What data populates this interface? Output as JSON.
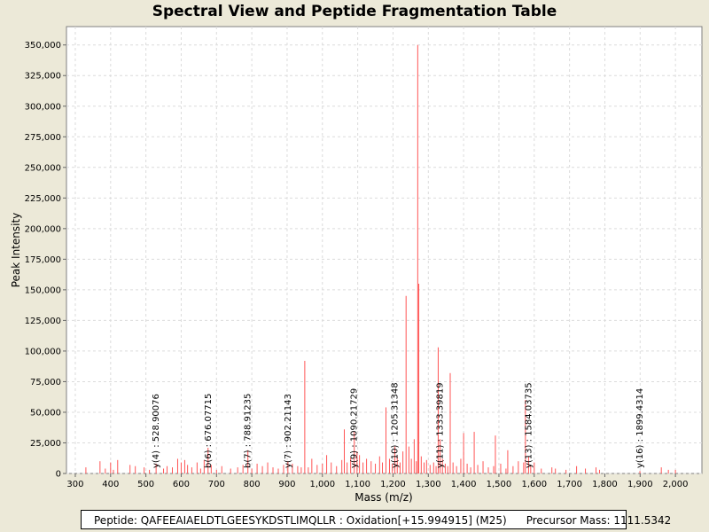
{
  "chart_data": {
    "type": "bar",
    "title": "Spectral View and Peptide Fragmentation Table",
    "xlabel": "Mass (m/z)",
    "ylabel": "Peak Intensity",
    "xlim": [
      275,
      2075
    ],
    "ylim": [
      0,
      365000
    ],
    "grid": true,
    "peak_color": "#ff5555",
    "x_ticks": [
      300,
      400,
      500,
      600,
      700,
      800,
      900,
      1000,
      1100,
      1200,
      1300,
      1400,
      1500,
      1600,
      1700,
      1800,
      1900,
      2000
    ],
    "x_tick_labels": [
      "300",
      "400",
      "500",
      "600",
      "700",
      "800",
      "900",
      "1,000",
      "1,100",
      "1,200",
      "1,300",
      "1,400",
      "1,500",
      "1,600",
      "1,700",
      "1,800",
      "1,900",
      "2,000"
    ],
    "y_ticks": [
      0,
      25000,
      50000,
      75000,
      100000,
      125000,
      150000,
      175000,
      200000,
      225000,
      250000,
      275000,
      300000,
      325000,
      350000
    ],
    "y_tick_labels": [
      "0",
      "25,000",
      "50,000",
      "75,000",
      "100,000",
      "125,000",
      "150,000",
      "175,000",
      "200,000",
      "225,000",
      "250,000",
      "275,000",
      "300,000",
      "325,000",
      "350,000"
    ],
    "peaks": [
      {
        "mz": 330,
        "intensity": 5000
      },
      {
        "mz": 370,
        "intensity": 10000
      },
      {
        "mz": 385,
        "intensity": 4000
      },
      {
        "mz": 400,
        "intensity": 9000
      },
      {
        "mz": 408,
        "intensity": 3000
      },
      {
        "mz": 420,
        "intensity": 11000
      },
      {
        "mz": 455,
        "intensity": 7000
      },
      {
        "mz": 470,
        "intensity": 6000
      },
      {
        "mz": 495,
        "intensity": 5000
      },
      {
        "mz": 510,
        "intensity": 3000
      },
      {
        "mz": 528.9,
        "intensity": 8000
      },
      {
        "mz": 550,
        "intensity": 4000
      },
      {
        "mz": 560,
        "intensity": 6000
      },
      {
        "mz": 575,
        "intensity": 5000
      },
      {
        "mz": 590,
        "intensity": 12000
      },
      {
        "mz": 600,
        "intensity": 9000
      },
      {
        "mz": 610,
        "intensity": 11000
      },
      {
        "mz": 618,
        "intensity": 7000
      },
      {
        "mz": 630,
        "intensity": 5000
      },
      {
        "mz": 645,
        "intensity": 9000
      },
      {
        "mz": 655,
        "intensity": 4000
      },
      {
        "mz": 665,
        "intensity": 11000
      },
      {
        "mz": 676.08,
        "intensity": 21000
      },
      {
        "mz": 685,
        "intensity": 7000
      },
      {
        "mz": 700,
        "intensity": 3000
      },
      {
        "mz": 715,
        "intensity": 6000
      },
      {
        "mz": 740,
        "intensity": 4000
      },
      {
        "mz": 760,
        "intensity": 5000
      },
      {
        "mz": 775,
        "intensity": 7000
      },
      {
        "mz": 788.9,
        "intensity": 19000
      },
      {
        "mz": 800,
        "intensity": 4000
      },
      {
        "mz": 815,
        "intensity": 8000
      },
      {
        "mz": 830,
        "intensity": 6000
      },
      {
        "mz": 845,
        "intensity": 9000
      },
      {
        "mz": 860,
        "intensity": 5000
      },
      {
        "mz": 875,
        "intensity": 4000
      },
      {
        "mz": 890,
        "intensity": 7000
      },
      {
        "mz": 902.2,
        "intensity": 10000
      },
      {
        "mz": 915,
        "intensity": 8000
      },
      {
        "mz": 930,
        "intensity": 6000
      },
      {
        "mz": 940,
        "intensity": 5000
      },
      {
        "mz": 950,
        "intensity": 92000
      },
      {
        "mz": 960,
        "intensity": 5000
      },
      {
        "mz": 970,
        "intensity": 12000
      },
      {
        "mz": 985,
        "intensity": 7000
      },
      {
        "mz": 1000,
        "intensity": 8000
      },
      {
        "mz": 1012,
        "intensity": 15000
      },
      {
        "mz": 1025,
        "intensity": 9000
      },
      {
        "mz": 1040,
        "intensity": 6000
      },
      {
        "mz": 1055,
        "intensity": 11000
      },
      {
        "mz": 1062,
        "intensity": 36000
      },
      {
        "mz": 1070,
        "intensity": 9000
      },
      {
        "mz": 1080,
        "intensity": 13000
      },
      {
        "mz": 1090.2,
        "intensity": 34000
      },
      {
        "mz": 1098,
        "intensity": 18000
      },
      {
        "mz": 1105,
        "intensity": 15000
      },
      {
        "mz": 1115,
        "intensity": 9000
      },
      {
        "mz": 1125,
        "intensity": 12000
      },
      {
        "mz": 1138,
        "intensity": 10000
      },
      {
        "mz": 1150,
        "intensity": 8000
      },
      {
        "mz": 1162,
        "intensity": 14000
      },
      {
        "mz": 1170,
        "intensity": 9000
      },
      {
        "mz": 1180,
        "intensity": 54000
      },
      {
        "mz": 1190,
        "intensity": 12000
      },
      {
        "mz": 1198,
        "intensity": 8000
      },
      {
        "mz": 1205.3,
        "intensity": 22000
      },
      {
        "mz": 1212,
        "intensity": 14000
      },
      {
        "mz": 1220,
        "intensity": 9000
      },
      {
        "mz": 1228,
        "intensity": 18000
      },
      {
        "mz": 1237,
        "intensity": 145000
      },
      {
        "mz": 1245,
        "intensity": 22000
      },
      {
        "mz": 1252,
        "intensity": 12000
      },
      {
        "mz": 1260,
        "intensity": 28000
      },
      {
        "mz": 1266,
        "intensity": 10000
      },
      {
        "mz": 1270,
        "intensity": 350000
      },
      {
        "mz": 1273,
        "intensity": 155000
      },
      {
        "mz": 1280,
        "intensity": 14000
      },
      {
        "mz": 1288,
        "intensity": 9000
      },
      {
        "mz": 1295,
        "intensity": 11000
      },
      {
        "mz": 1305,
        "intensity": 7000
      },
      {
        "mz": 1315,
        "intensity": 9000
      },
      {
        "mz": 1322,
        "intensity": 6000
      },
      {
        "mz": 1328,
        "intensity": 103000
      },
      {
        "mz": 1333.4,
        "intensity": 28000
      },
      {
        "mz": 1340,
        "intensity": 12000
      },
      {
        "mz": 1348,
        "intensity": 8000
      },
      {
        "mz": 1355,
        "intensity": 6000
      },
      {
        "mz": 1362,
        "intensity": 82000
      },
      {
        "mz": 1370,
        "intensity": 9000
      },
      {
        "mz": 1380,
        "intensity": 6000
      },
      {
        "mz": 1392,
        "intensity": 12000
      },
      {
        "mz": 1400,
        "intensity": 33000
      },
      {
        "mz": 1410,
        "intensity": 8000
      },
      {
        "mz": 1420,
        "intensity": 5000
      },
      {
        "mz": 1430,
        "intensity": 34000
      },
      {
        "mz": 1440,
        "intensity": 7000
      },
      {
        "mz": 1455,
        "intensity": 10000
      },
      {
        "mz": 1470,
        "intensity": 5000
      },
      {
        "mz": 1485,
        "intensity": 6000
      },
      {
        "mz": 1490,
        "intensity": 31000
      },
      {
        "mz": 1505,
        "intensity": 8000
      },
      {
        "mz": 1520,
        "intensity": 4000
      },
      {
        "mz": 1525,
        "intensity": 19000
      },
      {
        "mz": 1540,
        "intensity": 6000
      },
      {
        "mz": 1555,
        "intensity": 10000
      },
      {
        "mz": 1570,
        "intensity": 9000
      },
      {
        "mz": 1575,
        "intensity": 60000
      },
      {
        "mz": 1584,
        "intensity": 14000
      },
      {
        "mz": 1590,
        "intensity": 7000
      },
      {
        "mz": 1600,
        "intensity": 9000
      },
      {
        "mz": 1620,
        "intensity": 4000
      },
      {
        "mz": 1650,
        "intensity": 5000
      },
      {
        "mz": 1660,
        "intensity": 4000
      },
      {
        "mz": 1690,
        "intensity": 3000
      },
      {
        "mz": 1720,
        "intensity": 6000
      },
      {
        "mz": 1745,
        "intensity": 4000
      },
      {
        "mz": 1775,
        "intensity": 5000
      },
      {
        "mz": 1785,
        "intensity": 3000
      },
      {
        "mz": 1899.4,
        "intensity": 2000
      },
      {
        "mz": 1960,
        "intensity": 5000
      },
      {
        "mz": 1980,
        "intensity": 3000
      },
      {
        "mz": 2000,
        "intensity": 3000
      }
    ],
    "annotations": [
      {
        "label": "y(4) : 528.90076",
        "mz": 528.9,
        "top_value": 59000
      },
      {
        "label": "b(6) : 676.07715",
        "mz": 676.08,
        "top_value": 72000
      },
      {
        "label": "b(7) : 788.91235",
        "mz": 788.9,
        "top_value": 61000
      },
      {
        "label": "y(7) : 902.21143",
        "mz": 902.2,
        "top_value": 66000
      },
      {
        "label": "y(9) : 1090.21729",
        "mz": 1090.2,
        "top_value": 77000
      },
      {
        "label": "y(10) : 1205.31348",
        "mz": 1205.3,
        "top_value": 90000
      },
      {
        "label": "y(11) : 1333.39819",
        "mz": 1333.4,
        "top_value": 71000
      },
      {
        "label": "y(13) : 1584.03735",
        "mz": 1584.0,
        "top_value": 69000
      },
      {
        "label": "y(16) : 1899.4314",
        "mz": 1899.4,
        "top_value": 65000
      }
    ]
  },
  "footer": {
    "peptide_text": "Peptide: QAFEEAIAELDTLGEESYKDSTLIMQLLR : Oxidation[+15.994915] (M25)",
    "precursor_text": "Precursor Mass: 1111.5342"
  }
}
